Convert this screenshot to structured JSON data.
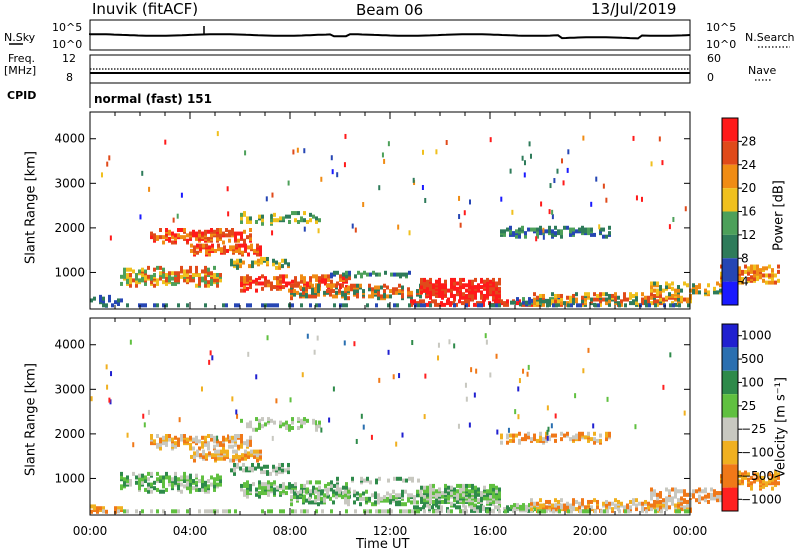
{
  "header": {
    "station": "Inuvik (fitACF)",
    "beam": "Beam 06",
    "date": "13/Jul/2019"
  },
  "strip_panels": {
    "nsky_label": "N.Sky",
    "nsearch_label": "N.Search",
    "count_axis_left": [
      "10^5",
      "10^0"
    ],
    "count_axis_right": [
      "10^5",
      "10^0"
    ],
    "freq_label": "Freq.",
    "freq_unit": "[MHz]",
    "freq_ticks": [
      "12",
      "8"
    ],
    "nave_label": "Nave",
    "nave_ticks": [
      "60",
      "0"
    ],
    "cpid_label": "CPID",
    "cpid_value": "normal (fast) 151"
  },
  "chart_data": [
    {
      "type": "heatmap",
      "panel": "power",
      "ylabel": "Slant Range [km]",
      "x_range_hours": [
        0,
        24
      ],
      "ylim": [
        180,
        4600
      ],
      "yticks": [
        "1000",
        "2000",
        "3000",
        "4000"
      ],
      "colorbar": {
        "label": "Power [dB]",
        "ticks": [
          "4",
          "8",
          "12",
          "16",
          "20",
          "24",
          "28"
        ],
        "colors": [
          "#1a1aff",
          "#2646b4",
          "#2e7b5a",
          "#4da05a",
          "#f0c01e",
          "#f08c14",
          "#e04a1a",
          "#ff1a1a"
        ]
      }
    },
    {
      "type": "heatmap",
      "panel": "velocity",
      "ylabel": "Slant Range [km]",
      "x_range_hours": [
        0,
        24
      ],
      "ylim": [
        180,
        4600
      ],
      "yticks": [
        "1000",
        "2000",
        "3000",
        "4000"
      ],
      "colorbar": {
        "label": "Velocity [m s⁻¹]",
        "ticks": [
          "1000",
          "500",
          "100",
          "25",
          "−25",
          "−100",
          "−500",
          "−1000"
        ],
        "colors": [
          "#2020d0",
          "#2a6fb0",
          "#2e8a4a",
          "#60c040",
          "#c8c8c0",
          "#f0b020",
          "#f07818",
          "#ff2020"
        ]
      }
    }
  ],
  "x_axis": {
    "ticks": [
      "00:00",
      "04:00",
      "08:00",
      "12:00",
      "16:00",
      "20:00",
      "00:00"
    ],
    "label": "Time UT"
  }
}
